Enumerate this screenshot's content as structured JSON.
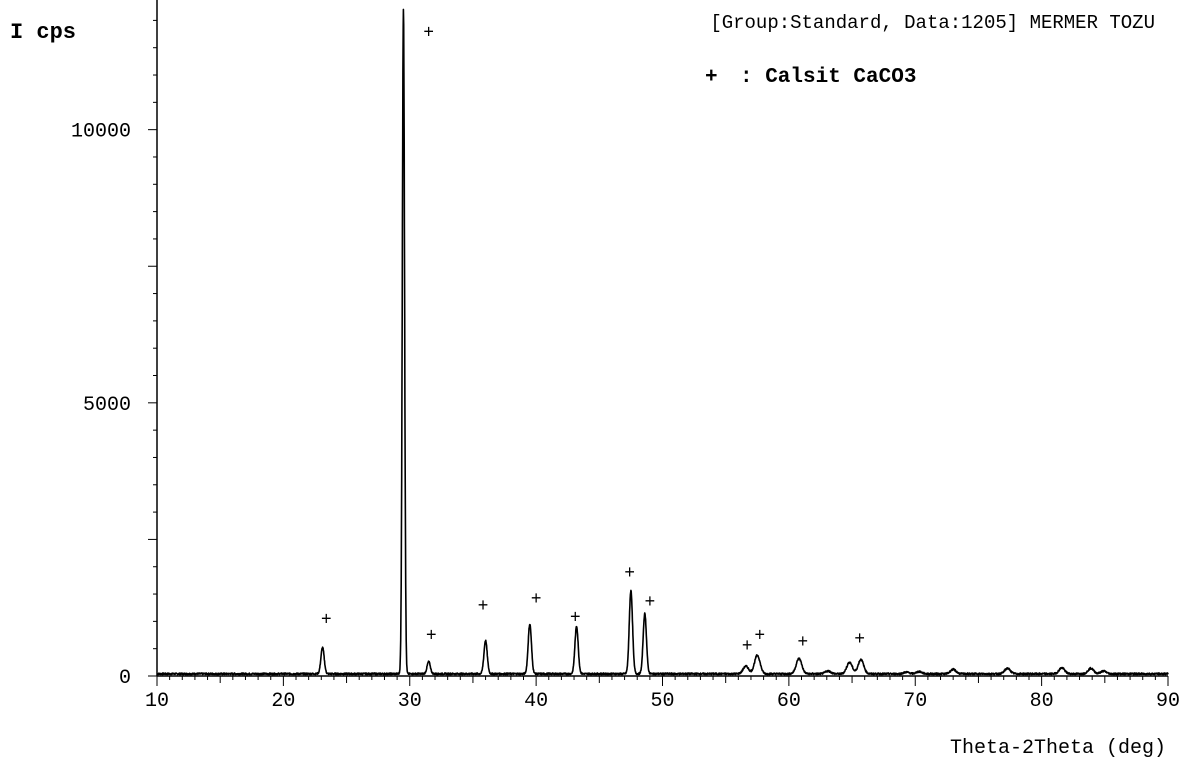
{
  "chart_data": {
    "type": "line",
    "title": "[Group:Standard, Data:1205] MERMER TOZU",
    "ylabel": "I cps",
    "xlabel": "Theta-2Theta (deg)",
    "xlim": [
      10,
      90
    ],
    "ylim": [
      0,
      12300
    ],
    "x_ticks": [
      10,
      20,
      30,
      40,
      50,
      60,
      70,
      80,
      90
    ],
    "y_ticks": [
      0,
      5000,
      10000
    ],
    "grid": false,
    "legend": {
      "position": "top-right",
      "marker": "+",
      "label": ": Calsit CaCO3"
    },
    "series": [
      {
        "name": "Calsit CaCO3",
        "peaks": [
          {
            "x": 23.1,
            "y": 520
          },
          {
            "x": 29.5,
            "y": 12200
          },
          {
            "x": 31.5,
            "y": 260
          },
          {
            "x": 36.0,
            "y": 650
          },
          {
            "x": 39.5,
            "y": 950
          },
          {
            "x": 43.2,
            "y": 910
          },
          {
            "x": 47.5,
            "y": 1560
          },
          {
            "x": 48.6,
            "y": 1140
          },
          {
            "x": 56.6,
            "y": 180
          },
          {
            "x": 57.5,
            "y": 380
          },
          {
            "x": 60.8,
            "y": 320
          },
          {
            "x": 63.1,
            "y": 90
          },
          {
            "x": 64.8,
            "y": 250
          },
          {
            "x": 65.7,
            "y": 300
          },
          {
            "x": 69.3,
            "y": 70
          },
          {
            "x": 70.3,
            "y": 80
          },
          {
            "x": 73.0,
            "y": 120
          },
          {
            "x": 77.3,
            "y": 140
          },
          {
            "x": 81.6,
            "y": 150
          },
          {
            "x": 83.9,
            "y": 140
          },
          {
            "x": 84.9,
            "y": 90
          }
        ],
        "baseline": 40
      }
    ],
    "markers": [
      {
        "x": 23.4,
        "y": 1050
      },
      {
        "x": 31.5,
        "y": 11800
      },
      {
        "x": 31.7,
        "y": 760
      },
      {
        "x": 35.8,
        "y": 1300
      },
      {
        "x": 40.0,
        "y": 1430
      },
      {
        "x": 43.1,
        "y": 1090
      },
      {
        "x": 47.4,
        "y": 1900
      },
      {
        "x": 49.0,
        "y": 1370
      },
      {
        "x": 56.7,
        "y": 570
      },
      {
        "x": 57.7,
        "y": 760
      },
      {
        "x": 61.1,
        "y": 640
      },
      {
        "x": 65.6,
        "y": 700
      }
    ]
  }
}
